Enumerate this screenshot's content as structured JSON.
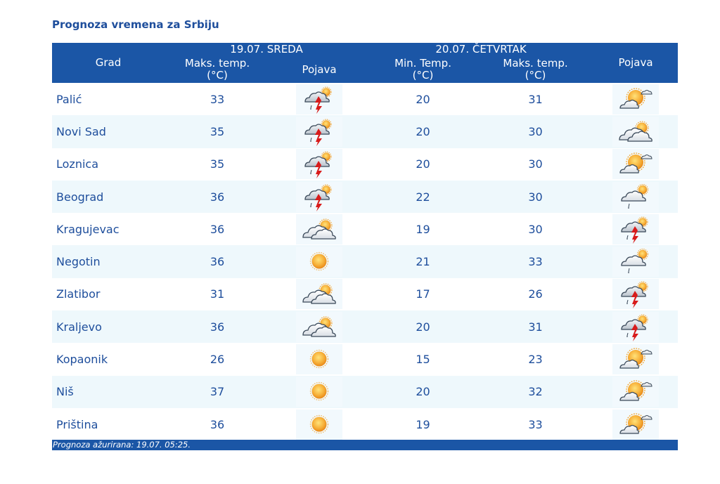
{
  "title": "Prognoza vremena za Srbiju",
  "header": {
    "city_col": "Grad",
    "day1": {
      "label": "19.07. SREDA",
      "max_temp": "Maks. temp.",
      "unit": "(°C)",
      "phenomenon": "Pojava"
    },
    "day2": {
      "label": "20.07. ČETVRTAK",
      "min_temp": "Min. Temp.",
      "max_temp": "Maks. temp.",
      "unit": "(°C)",
      "phenomenon": "Pojava"
    }
  },
  "rows": [
    {
      "city": "Palić",
      "d1_max": "33",
      "d1_icon": "thunderstorm-icon",
      "d2_min": "20",
      "d2_max": "31",
      "d2_icon": "sun-cloud-icon"
    },
    {
      "city": "Novi Sad",
      "d1_max": "35",
      "d1_icon": "thunderstorm-icon",
      "d2_min": "20",
      "d2_max": "30",
      "d2_icon": "cloudy-sun-icon"
    },
    {
      "city": "Loznica",
      "d1_max": "35",
      "d1_icon": "thunderstorm-icon",
      "d2_min": "20",
      "d2_max": "30",
      "d2_icon": "sun-cloud-icon"
    },
    {
      "city": "Beograd",
      "d1_max": "36",
      "d1_icon": "thunderstorm-icon",
      "d2_min": "22",
      "d2_max": "30",
      "d2_icon": "shower-icon"
    },
    {
      "city": "Kragujevac",
      "d1_max": "36",
      "d1_icon": "cloudy-sun-icon",
      "d2_min": "19",
      "d2_max": "30",
      "d2_icon": "thunderstorm-icon"
    },
    {
      "city": "Negotin",
      "d1_max": "36",
      "d1_icon": "sun-icon",
      "d2_min": "21",
      "d2_max": "33",
      "d2_icon": "shower-icon"
    },
    {
      "city": "Zlatibor",
      "d1_max": "31",
      "d1_icon": "cloudy-sun-icon",
      "d2_min": "17",
      "d2_max": "26",
      "d2_icon": "thunderstorm-icon"
    },
    {
      "city": "Kraljevo",
      "d1_max": "36",
      "d1_icon": "cloudy-sun-icon",
      "d2_min": "20",
      "d2_max": "31",
      "d2_icon": "thunderstorm-icon"
    },
    {
      "city": "Kopaonik",
      "d1_max": "26",
      "d1_icon": "sun-icon",
      "d2_min": "15",
      "d2_max": "23",
      "d2_icon": "sun-cloud-icon"
    },
    {
      "city": "Niš",
      "d1_max": "37",
      "d1_icon": "sun-icon",
      "d2_min": "20",
      "d2_max": "32",
      "d2_icon": "sun-cloud-icon"
    },
    {
      "city": "Priština",
      "d1_max": "36",
      "d1_icon": "sun-icon",
      "d2_min": "19",
      "d2_max": "33",
      "d2_icon": "sun-cloud-icon"
    }
  ],
  "footer": "Prognoza ažurirana:  19.07. 05:25.",
  "colors": {
    "accent": "#1b56a6",
    "text": "#1e4e9c",
    "row_alt": "#eef8fc",
    "sun": "#f5a623",
    "lightning": "#d81b1b"
  }
}
